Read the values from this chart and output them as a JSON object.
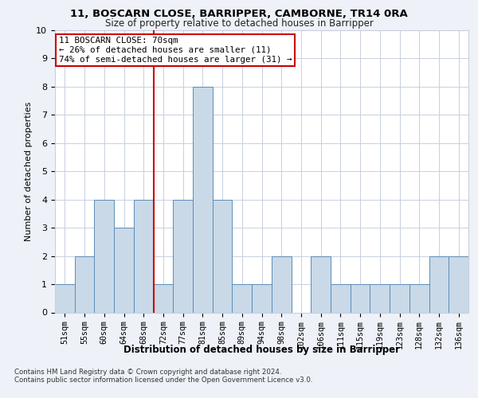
{
  "title1": "11, BOSCARN CLOSE, BARRIPPER, CAMBORNE, TR14 0RA",
  "title2": "Size of property relative to detached houses in Barripper",
  "xlabel": "Distribution of detached houses by size in Barripper",
  "ylabel": "Number of detached properties",
  "categories": [
    "51sqm",
    "55sqm",
    "60sqm",
    "64sqm",
    "68sqm",
    "72sqm",
    "77sqm",
    "81sqm",
    "85sqm",
    "89sqm",
    "94sqm",
    "98sqm",
    "102sqm",
    "106sqm",
    "111sqm",
    "115sqm",
    "119sqm",
    "123sqm",
    "128sqm",
    "132sqm",
    "136sqm"
  ],
  "values": [
    1,
    2,
    4,
    3,
    4,
    1,
    4,
    8,
    4,
    1,
    1,
    2,
    0,
    2,
    1,
    1,
    1,
    1,
    1,
    2,
    2
  ],
  "bar_color": "#c9d9e8",
  "bar_edge_color": "#5b8db8",
  "vline_x": 4.5,
  "vline_color": "#cc0000",
  "annotation_text": "11 BOSCARN CLOSE: 70sqm\n← 26% of detached houses are smaller (11)\n74% of semi-detached houses are larger (31) →",
  "annotation_box_color": "#ffffff",
  "annotation_box_edge": "#cc0000",
  "ylim": [
    0,
    10
  ],
  "yticks": [
    0,
    1,
    2,
    3,
    4,
    5,
    6,
    7,
    8,
    9,
    10
  ],
  "footer1": "Contains HM Land Registry data © Crown copyright and database right 2024.",
  "footer2": "Contains public sector information licensed under the Open Government Licence v3.0.",
  "background_color": "#eef2f8",
  "plot_bg_color": "#ffffff",
  "grid_color": "#c8d0de"
}
